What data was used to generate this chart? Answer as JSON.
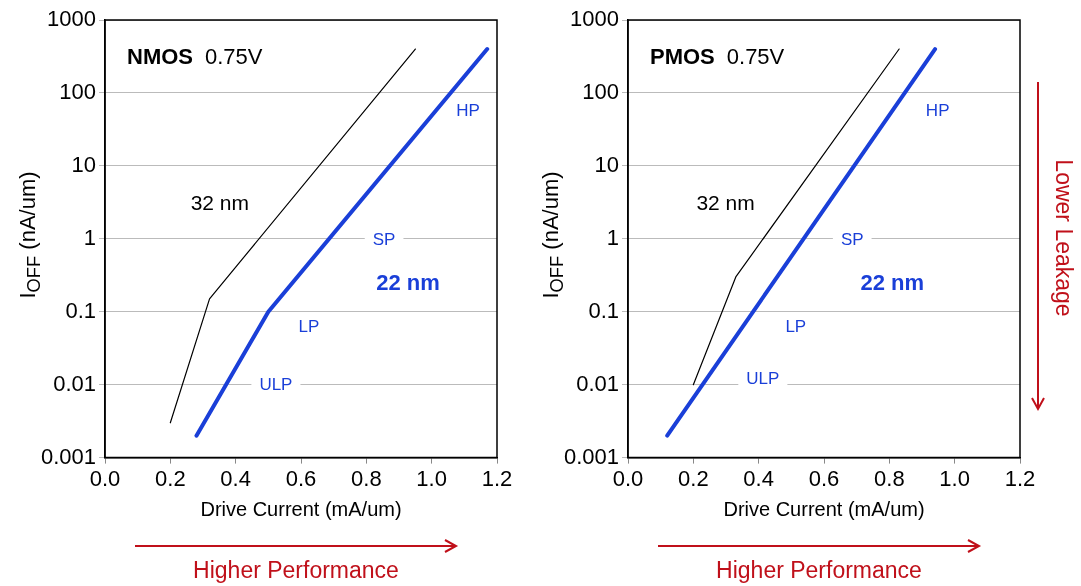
{
  "chart_data": [
    {
      "type": "line",
      "title": "NMOS",
      "subtitle": "0.75V",
      "xlabel": "Drive Current (mA/um)",
      "ylabel": "I$_{OFF}$ (nA/um)",
      "log": "y",
      "grid": "y",
      "legend": false,
      "marker": "none",
      "line_style": "solid",
      "xlim": [
        0,
        1.2
      ],
      "xticks": [
        {
          "value": 0,
          "label": "0.0"
        },
        {
          "value": 0.2,
          "label": "0.2"
        },
        {
          "value": 0.4,
          "label": "0.4"
        },
        {
          "value": 0.6,
          "label": "0.6"
        },
        {
          "value": 0.8,
          "label": "0.8"
        },
        {
          "value": 1,
          "label": "1.0"
        },
        {
          "value": 1.2,
          "label": "1.2"
        }
      ],
      "ylim": [
        0.001,
        1000
      ],
      "yticks": [
        0.001,
        0.01,
        0.1,
        1,
        10,
        100,
        1000
      ],
      "series": [
        {
          "name": "32 nm",
          "color": "#000000",
          "x": [
            0.2,
            0.32,
            0.95
          ],
          "values": [
            0.003,
            0.15,
            400
          ]
        },
        {
          "name": "22 nm",
          "color": "#1a3fd8",
          "x": [
            0.28,
            0.5,
            1.17
          ],
          "values": [
            0.002,
            0.1,
            400
          ]
        }
      ],
      "annotations": [
        "HP",
        "SP",
        "LP",
        "ULP",
        "Higher Performance"
      ]
    },
    {
      "type": "line",
      "title": "PMOS",
      "subtitle": "0.75V",
      "xlabel": "Drive Current (mA/um)",
      "ylabel": "I$_{OFF}$ (nA/um)",
      "log": "y",
      "grid": "y",
      "legend": false,
      "marker": "none",
      "line_style": "solid",
      "xlim": [
        0,
        1.2
      ],
      "xticks": [
        {
          "value": 0,
          "label": "0.0"
        },
        {
          "value": 0.2,
          "label": "0.2"
        },
        {
          "value": 0.4,
          "label": "0.4"
        },
        {
          "value": 0.6,
          "label": "0.6"
        },
        {
          "value": 0.8,
          "label": "0.8"
        },
        {
          "value": 1,
          "label": "1.0"
        },
        {
          "value": 1.2,
          "label": "1.2"
        }
      ],
      "ylim": [
        0.001,
        1000
      ],
      "yticks": [
        0.001,
        0.01,
        0.1,
        1,
        10,
        100,
        1000
      ],
      "series": [
        {
          "name": "32 nm",
          "color": "#000000",
          "x": [
            0.2,
            0.33,
            0.83
          ],
          "values": [
            0.01,
            0.3,
            400
          ]
        },
        {
          "name": "22 nm",
          "color": "#1a3fd8",
          "x": [
            0.12,
            0.94
          ],
          "values": [
            0.002,
            400
          ]
        }
      ],
      "annotations": [
        "HP",
        "SP",
        "LP",
        "ULP",
        "Higher Performance",
        "Lower Leakage"
      ]
    }
  ]
}
